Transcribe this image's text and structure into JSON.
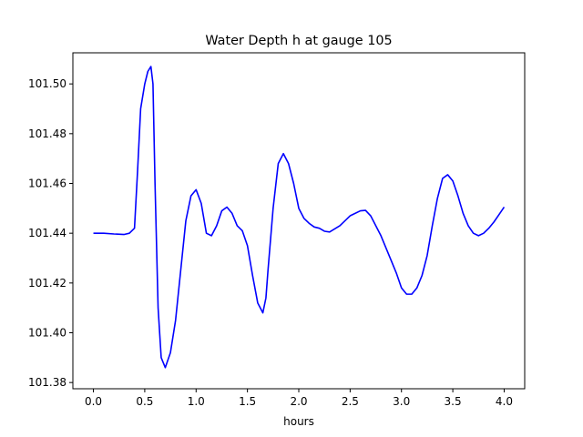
{
  "chart_data": {
    "type": "line",
    "title": "Water Depth h at gauge 105",
    "xlabel": "hours",
    "ylabel": "",
    "xlim": [
      -0.2,
      4.2
    ],
    "ylim": [
      101.3775,
      101.5125
    ],
    "xticks": [
      0.0,
      0.5,
      1.0,
      1.5,
      2.0,
      2.5,
      3.0,
      3.5,
      4.0
    ],
    "xtick_labels": [
      "0.0",
      "0.5",
      "1.0",
      "1.5",
      "2.0",
      "2.5",
      "3.0",
      "3.5",
      "4.0"
    ],
    "yticks": [
      101.38,
      101.4,
      101.42,
      101.44,
      101.46,
      101.48,
      101.5
    ],
    "ytick_labels": [
      "101.38",
      "101.40",
      "101.42",
      "101.44",
      "101.46",
      "101.48",
      "101.50"
    ],
    "grid": false,
    "series": [
      {
        "color": "#0000ff",
        "x": [
          0.0,
          0.1,
          0.2,
          0.3,
          0.35,
          0.4,
          0.43,
          0.46,
          0.5,
          0.53,
          0.56,
          0.58,
          0.6,
          0.63,
          0.66,
          0.7,
          0.75,
          0.8,
          0.85,
          0.9,
          0.95,
          1.0,
          1.05,
          1.1,
          1.15,
          1.2,
          1.25,
          1.3,
          1.35,
          1.4,
          1.45,
          1.5,
          1.55,
          1.6,
          1.65,
          1.68,
          1.7,
          1.75,
          1.8,
          1.85,
          1.9,
          1.95,
          2.0,
          2.05,
          2.1,
          2.15,
          2.2,
          2.25,
          2.3,
          2.4,
          2.5,
          2.6,
          2.65,
          2.7,
          2.8,
          2.9,
          2.95,
          3.0,
          3.05,
          3.1,
          3.15,
          3.2,
          3.25,
          3.3,
          3.35,
          3.4,
          3.45,
          3.5,
          3.55,
          3.6,
          3.65,
          3.7,
          3.75,
          3.8,
          3.85,
          3.9,
          3.95,
          4.0
        ],
        "y": [
          101.44,
          101.44,
          101.4397,
          101.4395,
          101.44,
          101.442,
          101.465,
          101.49,
          101.5,
          101.505,
          101.507,
          101.5,
          101.46,
          101.41,
          101.39,
          101.386,
          101.392,
          101.405,
          101.425,
          101.445,
          101.455,
          101.4575,
          101.452,
          101.44,
          101.439,
          101.443,
          101.449,
          101.4505,
          101.448,
          101.443,
          101.441,
          101.435,
          101.423,
          101.412,
          101.408,
          101.414,
          101.425,
          101.45,
          101.468,
          101.472,
          101.468,
          101.46,
          101.45,
          101.446,
          101.444,
          101.4425,
          101.442,
          101.4408,
          101.4405,
          101.443,
          101.447,
          101.449,
          101.4492,
          101.447,
          101.439,
          101.429,
          101.424,
          101.418,
          101.4155,
          101.4155,
          101.418,
          101.423,
          101.431,
          101.443,
          101.454,
          101.462,
          101.4635,
          101.461,
          101.455,
          101.448,
          101.443,
          101.44,
          101.439,
          101.44,
          101.442,
          101.4445,
          101.4475,
          101.4505
        ]
      }
    ]
  }
}
